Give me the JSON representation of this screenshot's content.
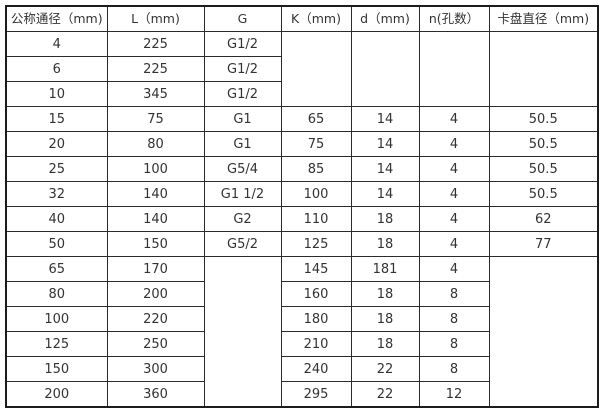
{
  "table": {
    "title": "flow-meter-dimension-spec-table",
    "text_color": "#333333",
    "border_color": "#2b2b2b",
    "background_color": "#ffffff",
    "headers": [
      "公称通径（mm)",
      "L（mm)",
      "G",
      "K（mm)",
      "d（mm)",
      "n(孔数）",
      "卡盘直径（mm)"
    ],
    "rows": [
      {
        "cells": [
          {
            "v": "4"
          },
          {
            "v": "225"
          },
          {
            "v": "G1/2"
          },
          {
            "v": "",
            "rs": 3
          },
          {
            "v": "",
            "rs": 3
          },
          {
            "v": "",
            "rs": 3
          },
          {
            "v": "",
            "rs": 3
          }
        ]
      },
      {
        "cells": [
          {
            "v": "6"
          },
          {
            "v": "225"
          },
          {
            "v": "G1/2"
          }
        ]
      },
      {
        "cells": [
          {
            "v": "10"
          },
          {
            "v": "345"
          },
          {
            "v": "G1/2"
          }
        ]
      },
      {
        "cells": [
          {
            "v": "15"
          },
          {
            "v": "75"
          },
          {
            "v": "G1"
          },
          {
            "v": "65"
          },
          {
            "v": "14"
          },
          {
            "v": "4"
          },
          {
            "v": "50.5"
          }
        ]
      },
      {
        "cells": [
          {
            "v": "20"
          },
          {
            "v": "80"
          },
          {
            "v": "G1"
          },
          {
            "v": "75"
          },
          {
            "v": "14"
          },
          {
            "v": "4"
          },
          {
            "v": "50.5"
          }
        ]
      },
      {
        "cells": [
          {
            "v": "25"
          },
          {
            "v": "100"
          },
          {
            "v": "G5/4"
          },
          {
            "v": "85"
          },
          {
            "v": "14"
          },
          {
            "v": "4"
          },
          {
            "v": "50.5"
          }
        ]
      },
      {
        "cells": [
          {
            "v": "32"
          },
          {
            "v": "140"
          },
          {
            "v": "G1 1/2"
          },
          {
            "v": "100"
          },
          {
            "v": "14"
          },
          {
            "v": "4"
          },
          {
            "v": "50.5"
          }
        ]
      },
      {
        "cells": [
          {
            "v": "40"
          },
          {
            "v": "140"
          },
          {
            "v": "G2"
          },
          {
            "v": "110"
          },
          {
            "v": "18"
          },
          {
            "v": "4"
          },
          {
            "v": "62"
          }
        ]
      },
      {
        "cells": [
          {
            "v": "50"
          },
          {
            "v": "150"
          },
          {
            "v": "G5/2"
          },
          {
            "v": "125"
          },
          {
            "v": "18"
          },
          {
            "v": "4"
          },
          {
            "v": "77"
          }
        ]
      },
      {
        "cells": [
          {
            "v": "65"
          },
          {
            "v": "170"
          },
          {
            "v": "",
            "rs": 6
          },
          {
            "v": "145"
          },
          {
            "v": "181"
          },
          {
            "v": "4"
          },
          {
            "v": "",
            "rs": 6
          }
        ]
      },
      {
        "cells": [
          {
            "v": "80"
          },
          {
            "v": "200"
          },
          {
            "v": "160"
          },
          {
            "v": "18"
          },
          {
            "v": "8"
          }
        ]
      },
      {
        "cells": [
          {
            "v": "100"
          },
          {
            "v": "220"
          },
          {
            "v": "180"
          },
          {
            "v": "18"
          },
          {
            "v": "8"
          }
        ]
      },
      {
        "cells": [
          {
            "v": "125"
          },
          {
            "v": "250"
          },
          {
            "v": "210"
          },
          {
            "v": "18"
          },
          {
            "v": "8"
          }
        ]
      },
      {
        "cells": [
          {
            "v": "150"
          },
          {
            "v": "300"
          },
          {
            "v": "240"
          },
          {
            "v": "22"
          },
          {
            "v": "8"
          }
        ]
      },
      {
        "cells": [
          {
            "v": "200"
          },
          {
            "v": "360"
          },
          {
            "v": "295"
          },
          {
            "v": "22"
          },
          {
            "v": "12"
          }
        ]
      }
    ],
    "column_names": [
      "nominal-diameter-mm",
      "length-l-mm",
      "thread-g",
      "k-mm",
      "d-mm",
      "n-hole-count",
      "chuck-diameter-mm"
    ]
  }
}
